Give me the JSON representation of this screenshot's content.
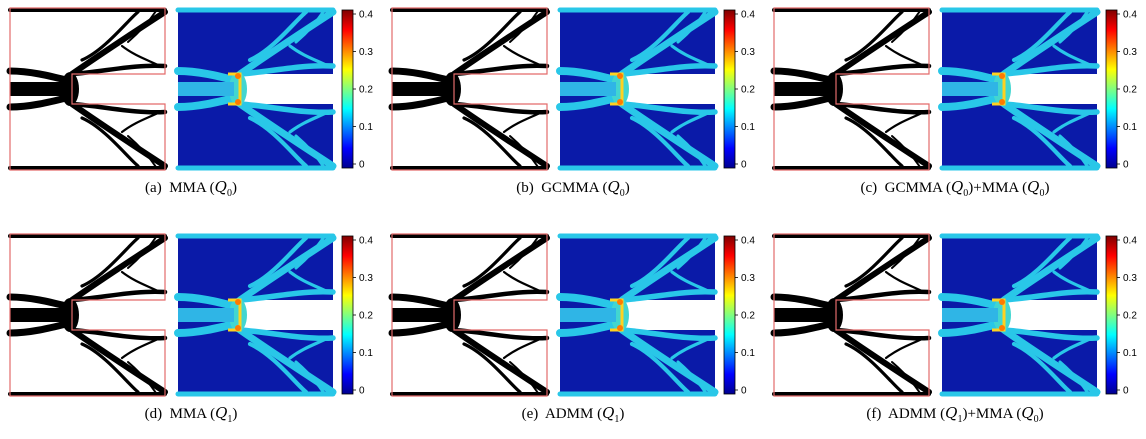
{
  "colorbar": {
    "ticks": [
      "0.4",
      "0.3",
      "0.2",
      "0.1",
      "0"
    ],
    "colors": [
      "#7f0000",
      "#ff0000",
      "#ff8000",
      "#ffff00",
      "#80ff80",
      "#00ffff",
      "#0080ff",
      "#0000ff",
      "#00008f"
    ]
  },
  "panels": [
    {
      "id": "a",
      "label": "(a)",
      "method": "MMA",
      "sets": [
        {
          "sym": "Q",
          "sub": "0"
        }
      ],
      "joiner": "+"
    },
    {
      "id": "b",
      "label": "(b)",
      "method": "GCMMA",
      "sets": [
        {
          "sym": "Q",
          "sub": "0"
        }
      ],
      "joiner": "+"
    },
    {
      "id": "c",
      "label": "(c)",
      "method": "GCMMA",
      "sets": [
        {
          "sym": "Q",
          "sub": "0"
        }
      ],
      "second_method": "MMA",
      "second_sets": [
        {
          "sym": "Q",
          "sub": "0"
        }
      ],
      "joiner": "+"
    },
    {
      "id": "d",
      "label": "(d)",
      "method": "MMA",
      "sets": [
        {
          "sym": "Q",
          "sub": "1"
        }
      ],
      "joiner": "+"
    },
    {
      "id": "e",
      "label": "(e)",
      "method": "ADMM",
      "sets": [
        {
          "sym": "Q",
          "sub": "1"
        }
      ],
      "joiner": "+"
    },
    {
      "id": "f",
      "label": "(f)",
      "method": "ADMM",
      "sets": [
        {
          "sym": "Q",
          "sub": "1"
        }
      ],
      "second_method": "MMA",
      "second_sets": [
        {
          "sym": "Q",
          "sub": "0"
        }
      ],
      "joiner": "+"
    }
  ]
}
